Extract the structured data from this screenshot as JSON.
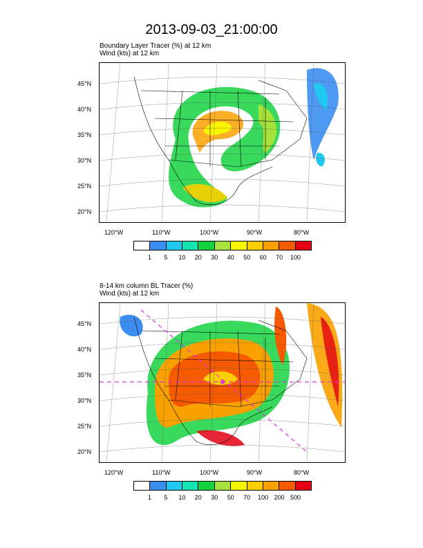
{
  "title": "2013-09-03_21:00:00",
  "panels": [
    {
      "subtitle_line1": "Boundary Layer Tracer   (%)     at  12 km",
      "subtitle_line2": "Wind   (kts)     at  12 km",
      "lat_ticks": [
        "45°N",
        "40°N",
        "35°N",
        "30°N",
        "25°N",
        "20°N"
      ],
      "lon_ticks": [
        "120°W",
        "110°W",
        "100°W",
        "90°W",
        "80°W"
      ],
      "colorbar_labels": [
        "1",
        "5",
        "10",
        "20",
        "30",
        "40",
        "50",
        "60",
        "70",
        "100"
      ],
      "colorbar_colors": [
        "#ffffff",
        "#3b8ef0",
        "#21c8ef",
        "#17e2b1",
        "#15d23f",
        "#a6e23a",
        "#f8f500",
        "#f9cf00",
        "#f9a100",
        "#f65a00",
        "#e40012"
      ]
    },
    {
      "subtitle_line1": "8-14 km column BL Tracer    (%)",
      "subtitle_line2": "Wind   (kts)     at  12 km",
      "lat_ticks": [
        "45°N",
        "40°N",
        "35°N",
        "30°N",
        "25°N",
        "20°N"
      ],
      "lon_ticks": [
        "120°W",
        "110°W",
        "100°W",
        "90°W",
        "80°W"
      ],
      "colorbar_labels": [
        "1",
        "5",
        "10",
        "20",
        "30",
        "50",
        "70",
        "100",
        "200",
        "500"
      ],
      "colorbar_colors": [
        "#ffffff",
        "#3b8ef0",
        "#21c8ef",
        "#17e2b1",
        "#15d23f",
        "#a6e23a",
        "#f8f500",
        "#f9cf00",
        "#f9a100",
        "#f65a00",
        "#e40012"
      ]
    }
  ]
}
